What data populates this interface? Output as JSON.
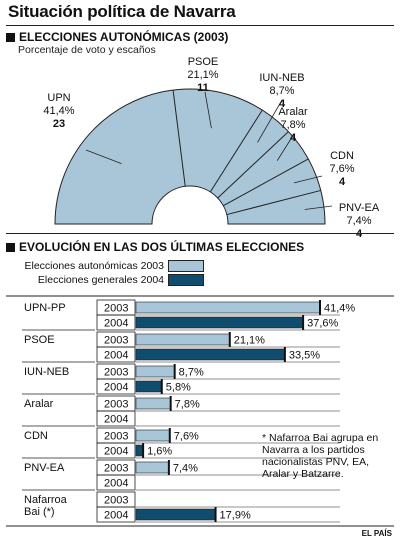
{
  "title": "Situación política de Navarra",
  "section1": {
    "title": "ELECCIONES AUTONÓMICAS (2003)",
    "subtitle": "Porcentaje de voto y escaños"
  },
  "section2": {
    "title": "EVOLUCIÓN EN LAS DOS ÚLTIMAS ELECCIONES"
  },
  "legend": {
    "autonomicas": "Elecciones autonómicas 2003",
    "generales": "Elecciones generales 2004"
  },
  "colors": {
    "autonomicas": "#a9c6d8",
    "generales": "#0f4c6e",
    "line": "#222222"
  },
  "footnote": "* Nafarroa Bai agrupa en Navarra a los partidos nacionalistas PNV, EA, Aralar y Batzarre.",
  "source": "EL PAÍS",
  "chart_data": [
    {
      "type": "pie",
      "title": "ELECCIONES AUTONÓMICAS (2003)",
      "subtitle": "Porcentaje de voto y escaños",
      "style": "hemicycle",
      "slices": [
        {
          "party": "UPN",
          "percent": "41,4%",
          "seats": 23,
          "seats_label": "23"
        },
        {
          "party": "PSOE",
          "percent": "21,1%",
          "seats": 11,
          "seats_label": "11"
        },
        {
          "party": "IUN-NEB",
          "percent": "8,7%",
          "seats": 4,
          "seats_label": "4"
        },
        {
          "party": "Aralar",
          "percent": "7,8%",
          "seats": 4,
          "seats_label": "4"
        },
        {
          "party": "CDN",
          "percent": "7,6%",
          "seats": 4,
          "seats_label": "4"
        },
        {
          "party": "PNV-EA",
          "percent": "7,4%",
          "seats": 4,
          "seats_label": "4"
        }
      ]
    },
    {
      "type": "bar",
      "title": "EVOLUCIÓN EN LAS DOS ÚLTIMAS ELECCIONES",
      "orientation": "horizontal",
      "xlim": [
        0,
        45
      ],
      "series": [
        {
          "name": "Elecciones autonómicas 2003",
          "year": "2003"
        },
        {
          "name": "Elecciones generales 2004",
          "year": "2004"
        }
      ],
      "parties": [
        {
          "name": "UPN-PP",
          "v2003": 41.4,
          "l2003": "41,4%",
          "v2004": 37.6,
          "l2004": "37,6%"
        },
        {
          "name": "PSOE",
          "v2003": 21.1,
          "l2003": "21,1%",
          "v2004": 33.5,
          "l2004": "33,5%"
        },
        {
          "name": "IUN-NEB",
          "v2003": 8.7,
          "l2003": "8,7%",
          "v2004": 5.8,
          "l2004": "5,8%"
        },
        {
          "name": "Aralar",
          "v2003": 7.8,
          "l2003": "7,8%",
          "v2004": null,
          "l2004": ""
        },
        {
          "name": "CDN",
          "v2003": 7.6,
          "l2003": "7,6%",
          "v2004": 1.6,
          "l2004": "1,6%"
        },
        {
          "name": "PNV-EA",
          "v2003": 7.4,
          "l2003": "7,4%",
          "v2004": null,
          "l2004": ""
        },
        {
          "name": "Nafarroa\nBai (*)",
          "v2003": null,
          "l2003": "",
          "v2004": 17.9,
          "l2004": "17,9%"
        }
      ]
    }
  ]
}
